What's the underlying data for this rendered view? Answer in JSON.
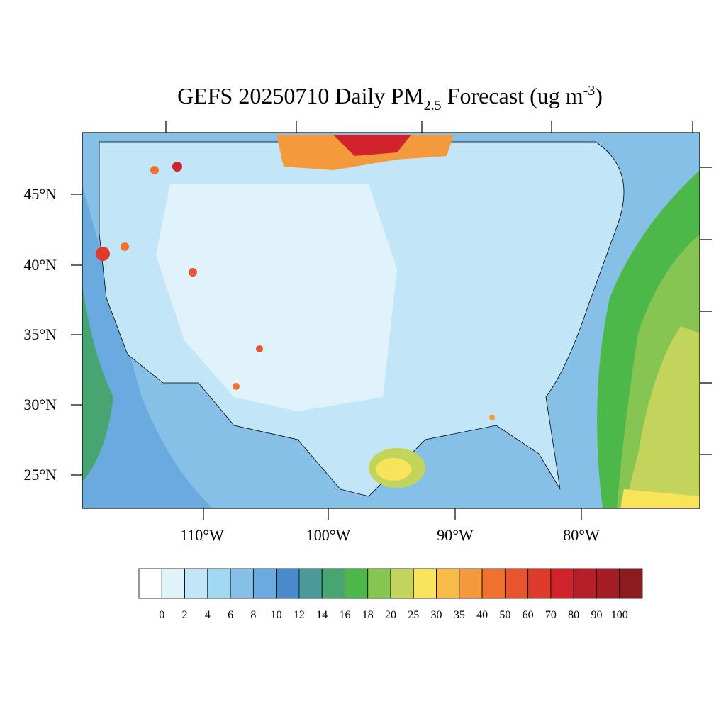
{
  "title": {
    "prefix": "GEFS 20250710 Daily PM",
    "subscript": "2.5",
    "middle": " Forecast (ug m",
    "superscript": "-3",
    "suffix": ")"
  },
  "lat_labels": [
    "45°N",
    "40°N",
    "35°N",
    "30°N",
    "25°N"
  ],
  "lon_labels": [
    "110°W",
    "100°W",
    "90°W",
    "80°W"
  ],
  "colorbar": {
    "labels": [
      "0",
      "2",
      "4",
      "6",
      "8",
      "10",
      "12",
      "14",
      "16",
      "18",
      "20",
      "25",
      "30",
      "35",
      "40",
      "50",
      "60",
      "70",
      "80",
      "90",
      "100"
    ],
    "colors": [
      "#ffffff",
      "#e0f3fb",
      "#c2e6f7",
      "#a3d8f3",
      "#86c0e6",
      "#6aaade",
      "#4a8ccb",
      "#4a9a9a",
      "#47a572",
      "#4db84a",
      "#86c551",
      "#c3d45a",
      "#f8e45a",
      "#f8bb48",
      "#f59a3c",
      "#f1722e",
      "#e8542e",
      "#dc3a2a",
      "#d0232c",
      "#b61e2a",
      "#a41c24",
      "#8b1a1c"
    ]
  }
}
